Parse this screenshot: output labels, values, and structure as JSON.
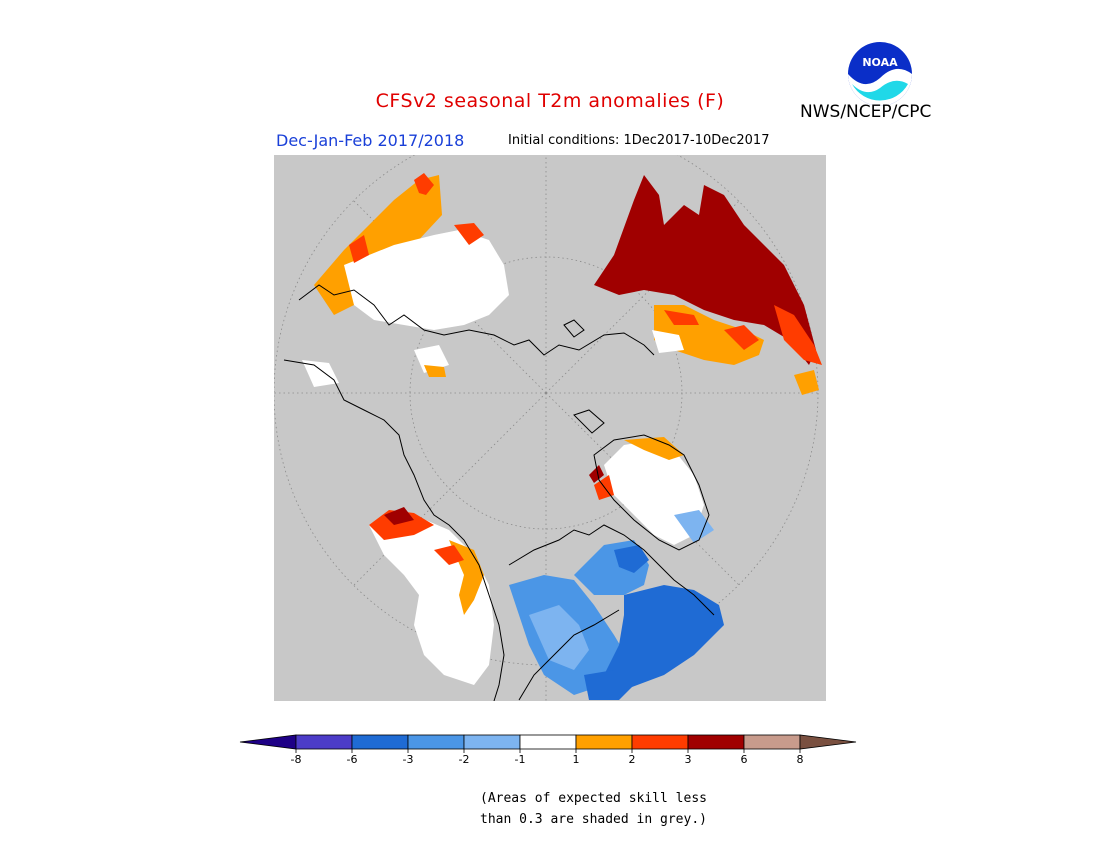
{
  "title": "CFSv2 seasonal T2m anomalies (F)",
  "organization": "NWS/NCEP/CPC",
  "logo_text": "NOAA",
  "season": "Dec-Jan-Feb 2017/2018",
  "initial_conditions": "Initial conditions: 1Dec2017-10Dec2017",
  "colorbar": {
    "colors": [
      "#1e0086",
      "#4c3cc8",
      "#1f6bd4",
      "#4b96e6",
      "#7db4f0",
      "#ffffff",
      "#ffa000",
      "#ff3c00",
      "#a00000",
      "#c89b8c",
      "#7a5040"
    ],
    "tick_labels": [
      "-8",
      "-6",
      "-3",
      "-2",
      "-1",
      "1",
      "2",
      "3",
      "6",
      "8"
    ]
  },
  "note": {
    "line1": "(Areas of expected skill less",
    "line2": "than 0.3 are shaded in grey.)"
  },
  "map_colors": {
    "background": "#c8c8c8",
    "neutral": "#ffffff",
    "warm1": "#ffa000",
    "warm2": "#ff3c00",
    "warm3": "#a00000",
    "cool1": "#7db4f0",
    "cool2": "#4b96e6",
    "cool3": "#1f6bd4"
  }
}
